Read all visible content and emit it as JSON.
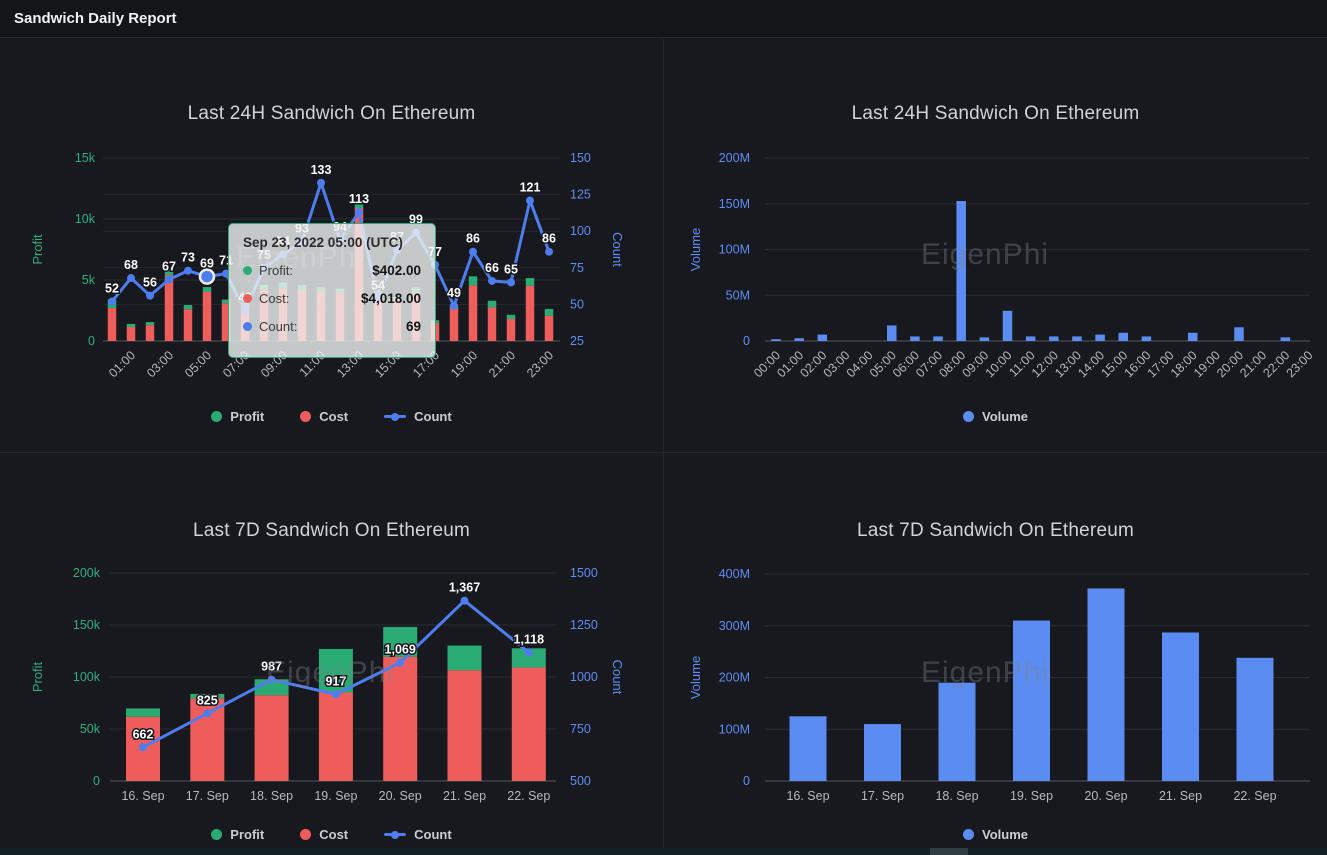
{
  "header": {
    "title": "Sandwich Daily Report"
  },
  "watermark": {
    "text": "EigenPhi"
  },
  "colors": {
    "profit_green": "#2bab74",
    "cost_red": "#ee5c5c",
    "count_blue": "#4e7df0",
    "volume_blue": "#5b8cf2",
    "axis_green": "#2fae7d",
    "axis_blue": "#5f8df2",
    "tick_gray": "#b4b9bf",
    "tooltip_border": "#2fa876"
  },
  "tooltip_24h": {
    "title": "Sep 23, 2022 05:00 (UTC)",
    "rows": [
      {
        "label": "Profit:",
        "value": "$402.00",
        "color": "#2bab74"
      },
      {
        "label": "Cost:",
        "value": "$4,018.00",
        "color": "#ee5c5c"
      },
      {
        "label": "Count:",
        "value": "69",
        "color": "#4e7df0"
      }
    ]
  },
  "chart_data": [
    {
      "id": "last-24h-profit-cost-count",
      "type": "bar",
      "subtype": "stacked-bars-with-line",
      "title": "Last 24H Sandwich On Ethereum",
      "categories": [
        "00:00",
        "01:00",
        "02:00",
        "03:00",
        "04:00",
        "05:00",
        "06:00",
        "07:00",
        "08:00",
        "09:00",
        "10:00",
        "11:00",
        "12:00",
        "13:00",
        "14:00",
        "15:00",
        "16:00",
        "17:00",
        "18:00",
        "19:00",
        "20:00",
        "21:00",
        "22:00",
        "23:00"
      ],
      "ylabel_left": "Profit",
      "yticks_left": [
        "15k",
        "10k",
        "5k",
        "0"
      ],
      "ytick_values_left": [
        15000,
        10000,
        5000,
        0
      ],
      "ylim_left": [
        0,
        15000
      ],
      "ylabel_right": "Count",
      "yticks_right": [
        "150",
        "125",
        "100",
        "75",
        "50",
        "25"
      ],
      "ytick_values_right": [
        150,
        125,
        100,
        75,
        50,
        25
      ],
      "ylim_right": [
        25,
        150
      ],
      "highlight_index": 5,
      "series": [
        {
          "name": "Profit",
          "type": "bar",
          "color": "#2bab74",
          "values": [
            700,
            250,
            250,
            600,
            350,
            402,
            300,
            200,
            400,
            500,
            400,
            300,
            300,
            300,
            300,
            200,
            400,
            200,
            150,
            740,
            550,
            350,
            630,
            550
          ]
        },
        {
          "name": "Cost",
          "type": "bar",
          "color": "#ee5c5c",
          "values": [
            2700,
            1150,
            1300,
            5400,
            2600,
            4018,
            3100,
            3000,
            4200,
            4300,
            4200,
            4100,
            4000,
            10900,
            4700,
            3400,
            4000,
            1500,
            2750,
            4560,
            2750,
            1800,
            4530,
            2070
          ]
        },
        {
          "name": "Count",
          "type": "line",
          "color": "#4e7df0",
          "values": [
            52,
            68,
            56,
            67,
            73,
            69,
            71,
            46,
            75,
            84,
            93,
            133,
            94,
            113,
            54,
            87,
            99,
            77,
            49,
            86,
            66,
            65,
            121,
            86
          ]
        }
      ]
    },
    {
      "id": "last-24h-volume",
      "type": "bar",
      "title": "Last 24H Sandwich On Ethereum",
      "categories": [
        "00:00",
        "01:00",
        "02:00",
        "03:00",
        "04:00",
        "05:00",
        "06:00",
        "07:00",
        "08:00",
        "09:00",
        "10:00",
        "11:00",
        "12:00",
        "13:00",
        "14:00",
        "15:00",
        "16:00",
        "17:00",
        "18:00",
        "19:00",
        "20:00",
        "21:00",
        "22:00",
        "23:00"
      ],
      "ylabel_left": "Volume",
      "yticks_left": [
        "200M",
        "150M",
        "100M",
        "50M",
        "0"
      ],
      "ytick_values_left": [
        200,
        150,
        100,
        50,
        0
      ],
      "ylim_left": [
        0,
        200
      ],
      "unit": "millions",
      "series": [
        {
          "name": "Volume",
          "type": "bar",
          "color": "#5b8cf2",
          "values": [
            2,
            3,
            7,
            0.5,
            0.5,
            17,
            5,
            5,
            153,
            4,
            33,
            5,
            5,
            5,
            7,
            9,
            5,
            0.5,
            9,
            0.5,
            15,
            0.5,
            4,
            0.5
          ]
        }
      ]
    },
    {
      "id": "last-7d-profit-cost-count",
      "type": "bar",
      "subtype": "stacked-bars-with-line",
      "title": "Last 7D Sandwich On Ethereum",
      "categories": [
        "16. Sep",
        "17. Sep",
        "18. Sep",
        "19. Sep",
        "20. Sep",
        "21. Sep",
        "22. Sep"
      ],
      "ylabel_left": "Profit",
      "yticks_left": [
        "200k",
        "150k",
        "100k",
        "50k",
        "0"
      ],
      "ytick_values_left": [
        200000,
        150000,
        100000,
        50000,
        0
      ],
      "ylim_left": [
        0,
        200000
      ],
      "ylabel_right": "Count",
      "yticks_right": [
        "1500",
        "1250",
        "1000",
        "750",
        "500"
      ],
      "ytick_values_right": [
        1500,
        1250,
        1000,
        750,
        500
      ],
      "ylim_right": [
        500,
        1500
      ],
      "series": [
        {
          "name": "Profit",
          "type": "bar",
          "color": "#2bab74",
          "values": [
            8100,
            4200,
            15300,
            41900,
            28600,
            23700,
            18500
          ]
        },
        {
          "name": "Cost",
          "type": "bar",
          "color": "#ee5c5c",
          "values": [
            61700,
            79500,
            82500,
            85100,
            119500,
            106500,
            109100
          ]
        },
        {
          "name": "Count",
          "type": "line",
          "color": "#4e7df0",
          "values": [
            662,
            825,
            987,
            917,
            1069,
            1367,
            1118
          ],
          "labels": [
            "662",
            "825",
            "987",
            "917",
            "1,069",
            "1,367",
            "1,118"
          ]
        }
      ]
    },
    {
      "id": "last-7d-volume",
      "type": "bar",
      "title": "Last 7D Sandwich On Ethereum",
      "categories": [
        "16. Sep",
        "17. Sep",
        "18. Sep",
        "19. Sep",
        "20. Sep",
        "21. Sep",
        "22. Sep"
      ],
      "ylabel_left": "Volume",
      "yticks_left": [
        "400M",
        "300M",
        "200M",
        "100M",
        "0"
      ],
      "ytick_values_left": [
        400,
        300,
        200,
        100,
        0
      ],
      "ylim_left": [
        0,
        400
      ],
      "unit": "millions",
      "series": [
        {
          "name": "Volume",
          "type": "bar",
          "color": "#5b8cf2",
          "values": [
            125,
            110,
            190,
            310,
            372,
            287,
            238
          ]
        }
      ]
    }
  ]
}
